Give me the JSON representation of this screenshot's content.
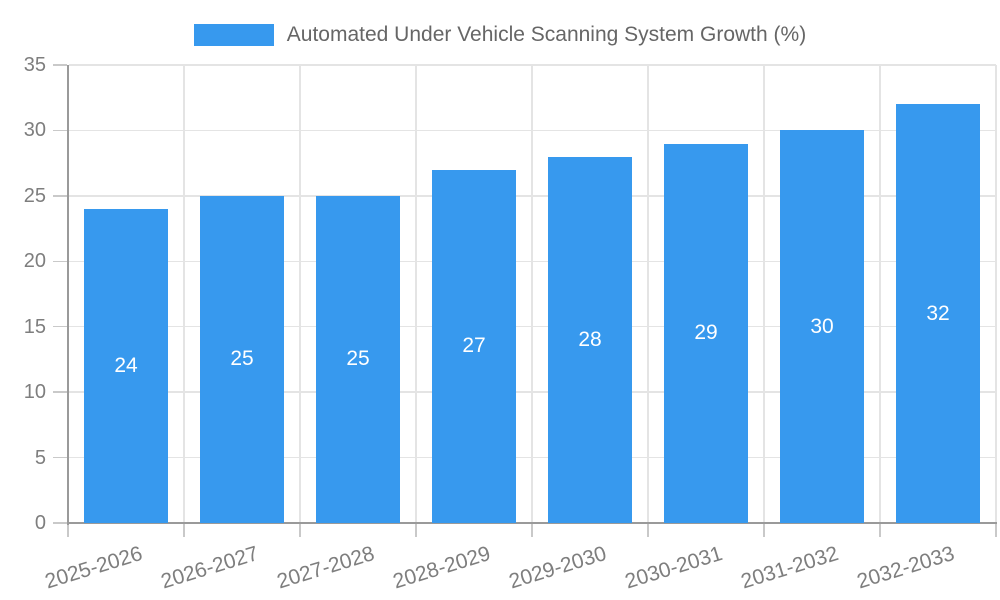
{
  "legend": {
    "label": "Automated Under Vehicle Scanning System Growth (%)"
  },
  "chart_data": {
    "type": "bar",
    "title": "",
    "legend_label": "Automated Under Vehicle Scanning System Growth (%)",
    "categories": [
      "2025-2026",
      "2026-2027",
      "2027-2028",
      "2028-2029",
      "2029-2030",
      "2030-2031",
      "2031-2032",
      "2032-2033"
    ],
    "values": [
      24,
      25,
      25,
      27,
      28,
      29,
      30,
      32
    ],
    "value_labels": [
      "24",
      "25",
      "25",
      "27",
      "28",
      "29",
      "30",
      "32"
    ],
    "xlabel": "",
    "ylabel": "",
    "ylim": [
      0,
      35
    ],
    "yticks": [
      0,
      5,
      10,
      15,
      20,
      25,
      30,
      35
    ],
    "grid": true,
    "legend_position": "top"
  },
  "colors": {
    "bar": "#3799ee",
    "axis": "#9a9a9a",
    "gridline": "#e4e4e4",
    "tick": "#c9c9c9",
    "tick_text": "#7e7e7e",
    "legend_text": "#666666",
    "value_label": "#ffffff",
    "background": "#ffffff"
  }
}
